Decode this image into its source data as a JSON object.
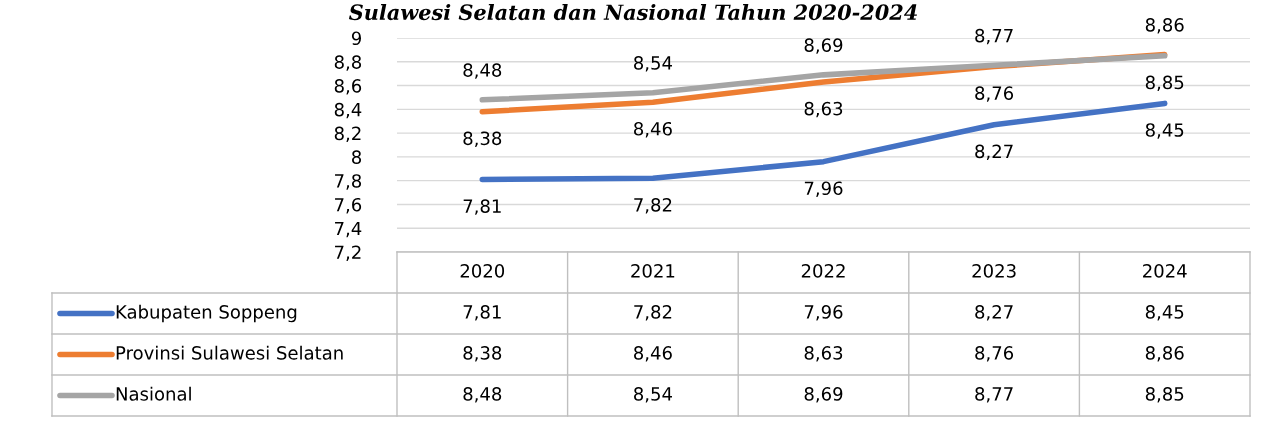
{
  "chart_data": {
    "type": "line",
    "title": "Sulawesi Selatan dan Nasional Tahun 2020-2024",
    "categories": [
      "2020",
      "2021",
      "2022",
      "2023",
      "2024"
    ],
    "series": [
      {
        "name": "Kabupaten Soppeng",
        "color": "#4472c4",
        "values": [
          7.81,
          7.82,
          7.96,
          8.27,
          8.45
        ],
        "value_labels": [
          "7,81",
          "7,82",
          "7,96",
          "8,27",
          "8,45"
        ]
      },
      {
        "name": "Provinsi Sulawesi Selatan",
        "color": "#ed7d31",
        "values": [
          8.38,
          8.46,
          8.63,
          8.76,
          8.86
        ],
        "value_labels": [
          "8,38",
          "8,46",
          "8,63",
          "8,76",
          "8,86"
        ]
      },
      {
        "name": "Nasional",
        "color": "#a5a5a5",
        "values": [
          8.48,
          8.54,
          8.69,
          8.77,
          8.85
        ],
        "value_labels": [
          "8,48",
          "8,54",
          "8,69",
          "8,77",
          "8,85"
        ]
      }
    ],
    "ylim": [
      7.2,
      9
    ],
    "yticks": [
      {
        "value": 7.2,
        "label": "7,2"
      },
      {
        "value": 7.4,
        "label": "7,4"
      },
      {
        "value": 7.6,
        "label": "7,6"
      },
      {
        "value": 7.8,
        "label": "7,8"
      },
      {
        "value": 8,
        "label": "8"
      },
      {
        "value": 8.2,
        "label": "8,2"
      },
      {
        "value": 8.4,
        "label": "8,4"
      },
      {
        "value": 8.6,
        "label": "8,6"
      },
      {
        "value": 8.8,
        "label": "8,8"
      },
      {
        "value": 9,
        "label": "9"
      }
    ],
    "grid": "y",
    "legend": "bottom",
    "marker": "none",
    "line_style": "solid"
  }
}
